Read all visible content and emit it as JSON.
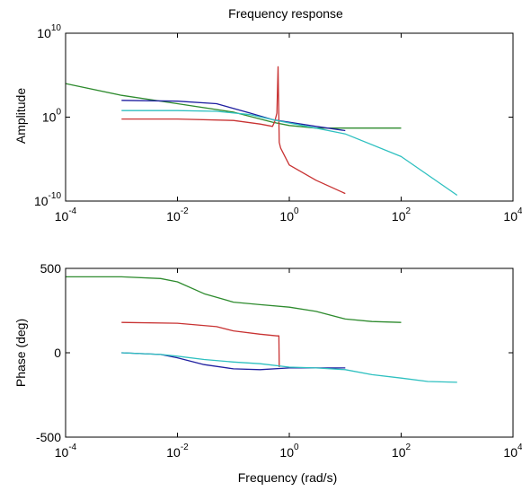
{
  "figure": {
    "background": "#ffffff",
    "axes_color": "#000000"
  },
  "chart_data": [
    {
      "type": "line",
      "title": "Frequency response",
      "xlabel": "",
      "ylabel": "Amplitude",
      "xscale": "log",
      "yscale": "log",
      "xlim": [
        0.0001,
        10000
      ],
      "ylim": [
        1e-10,
        10000000000.0
      ],
      "xticks": [
        {
          "value": 0.0001,
          "base": "10",
          "exp": "-4"
        },
        {
          "value": 0.01,
          "base": "10",
          "exp": "-2"
        },
        {
          "value": 1,
          "base": "10",
          "exp": "0"
        },
        {
          "value": 100,
          "base": "10",
          "exp": "2"
        },
        {
          "value": 10000,
          "base": "10",
          "exp": "4"
        }
      ],
      "yticks": [
        {
          "value": 1e-10,
          "base": "10",
          "exp": "-10"
        },
        {
          "value": 1,
          "base": "10",
          "exp": "0"
        },
        {
          "value": 10000000000.0,
          "base": "10",
          "exp": "10"
        }
      ],
      "grid": false,
      "series": [
        {
          "color": "#2e8b2e",
          "x": [
            0.0001,
            0.001,
            0.01,
            0.1,
            0.5,
            1,
            3,
            10,
            100
          ],
          "y": [
            10000,
            400,
            40,
            4,
            0.25,
            0.1,
            0.05,
            0.05,
            0.05
          ]
        },
        {
          "color": "#1f1fa0",
          "x": [
            0.001,
            0.01,
            0.05,
            0.2,
            0.5,
            1,
            3,
            10
          ],
          "y": [
            100,
            80,
            40,
            3,
            0.5,
            0.25,
            0.08,
            0.025
          ]
        },
        {
          "color": "#c83232",
          "x": [
            0.001,
            0.01,
            0.1,
            0.3,
            0.5,
            0.55,
            0.6,
            0.63,
            0.66,
            0.7,
            1,
            3,
            10
          ],
          "y": [
            0.6,
            0.6,
            0.4,
            0.15,
            0.08,
            0.3,
            3,
            1000000,
            0.001,
            0.0002,
            2e-06,
            3e-08,
            8e-10
          ]
        },
        {
          "color": "#2ec0c0",
          "x": [
            0.001,
            0.01,
            0.05,
            0.2,
            0.5,
            1,
            3,
            10,
            100,
            1000
          ],
          "y": [
            6,
            6,
            5,
            2,
            0.5,
            0.2,
            0.05,
            0.01,
            2e-05,
            5e-10
          ]
        }
      ]
    },
    {
      "type": "line",
      "title": "",
      "xlabel": "Frequency (rad/s)",
      "ylabel": "Phase (deg)",
      "xscale": "log",
      "yscale": "linear",
      "xlim": [
        0.0001,
        10000
      ],
      "ylim": [
        -500,
        500
      ],
      "xticks": [
        {
          "value": 0.0001,
          "base": "10",
          "exp": "-4"
        },
        {
          "value": 0.01,
          "base": "10",
          "exp": "-2"
        },
        {
          "value": 1,
          "base": "10",
          "exp": "0"
        },
        {
          "value": 100,
          "base": "10",
          "exp": "2"
        },
        {
          "value": 10000,
          "base": "10",
          "exp": "4"
        }
      ],
      "yticks": [
        {
          "value": -500,
          "label": "-500"
        },
        {
          "value": 0,
          "label": "0"
        },
        {
          "value": 500,
          "label": "500"
        }
      ],
      "grid": false,
      "series": [
        {
          "color": "#2e8b2e",
          "x": [
            0.0001,
            0.001,
            0.005,
            0.01,
            0.03,
            0.1,
            0.3,
            1,
            3,
            10,
            30,
            100
          ],
          "y": [
            450,
            450,
            440,
            420,
            350,
            300,
            285,
            270,
            245,
            200,
            185,
            180
          ]
        },
        {
          "color": "#c83232",
          "x": [
            0.001,
            0.01,
            0.05,
            0.1,
            0.3,
            0.6,
            0.65,
            0.66
          ],
          "y": [
            180,
            175,
            155,
            130,
            110,
            100,
            100,
            -85
          ]
        },
        {
          "color": "#1f1fa0",
          "x": [
            0.001,
            0.005,
            0.01,
            0.03,
            0.1,
            0.3,
            1,
            3,
            10
          ],
          "y": [
            0,
            -10,
            -30,
            -70,
            -95,
            -100,
            -90,
            -90,
            -90
          ]
        },
        {
          "color": "#2ec0c0",
          "x": [
            0.001,
            0.005,
            0.01,
            0.03,
            0.1,
            0.3,
            1,
            3,
            10,
            30,
            100,
            300,
            1000
          ],
          "y": [
            0,
            -10,
            -20,
            -40,
            -55,
            -65,
            -85,
            -90,
            -100,
            -130,
            -150,
            -170,
            -175
          ]
        }
      ]
    }
  ]
}
